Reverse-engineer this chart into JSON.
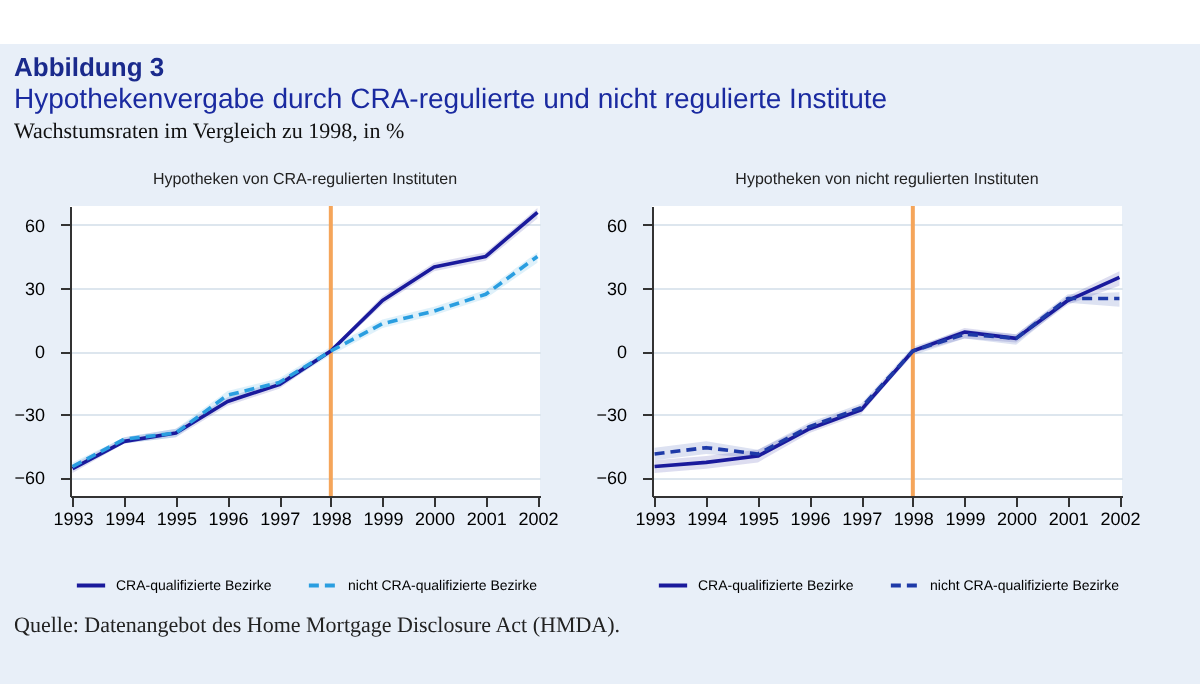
{
  "chart_data": [
    {
      "type": "line",
      "title": "Hypotheken von CRA-regulierten Instituten",
      "annotations": [
        "Abbildung 3",
        "Hypothekenvergabe durch CRA-regulierte und nicht regulierte Institute",
        "Wachstumsraten im Vergleich zu 1998, in %",
        "Quelle: Datenangebot des Home Mortgage Disclosure Act (HMDA)."
      ],
      "categories": [
        "1993",
        "1994",
        "1995",
        "1996",
        "1997",
        "1998",
        "1999",
        "2000",
        "2001",
        "2002"
      ],
      "series": [
        {
          "name": "CRA-qualifizierte Bezirke",
          "color": "#1a1a9c",
          "line_style": "solid",
          "values": [
            -56,
            -43,
            -39,
            -24,
            -16,
            0,
            24,
            40,
            45,
            66
          ],
          "lower": [
            -58,
            -44,
            -41,
            -26,
            -18,
            -1,
            22,
            38,
            43,
            63
          ],
          "upper": [
            -54,
            -41,
            -37,
            -22,
            -14,
            1,
            26,
            42,
            47,
            68
          ]
        },
        {
          "name": "nicht CRA-qualifizierte Bezirke",
          "color": "#2a9ee0",
          "line_style": "dashed",
          "values": [
            -55,
            -42,
            -39,
            -21,
            -15,
            0,
            13,
            19,
            27,
            45
          ],
          "lower": [
            -57,
            -44,
            -41,
            -23,
            -17,
            -2,
            11,
            17,
            25,
            42
          ],
          "upper": [
            -53,
            -41,
            -37,
            -19,
            -13,
            2,
            15,
            21,
            29,
            47
          ]
        }
      ],
      "ylim": [
        -69,
        69
      ],
      "yticks": [
        -60,
        -30,
        0,
        30,
        60
      ],
      "grid": "y",
      "legend": "bottom",
      "ref_lines": [
        {
          "axis": "x",
          "value": "1998",
          "color": "#f5a55a"
        }
      ]
    },
    {
      "type": "line",
      "title": "Hypotheken von nicht regulierten Instituten",
      "categories": [
        "1993",
        "1994",
        "1995",
        "1996",
        "1997",
        "1998",
        "1999",
        "2000",
        "2001",
        "2002"
      ],
      "series": [
        {
          "name": "CRA-qualifizierte Bezirke",
          "color": "#1a1a9c",
          "line_style": "solid",
          "values": [
            -55,
            -53,
            -50,
            -37,
            -28,
            0,
            9,
            6,
            24,
            35
          ],
          "lower": [
            -58,
            -56,
            -53,
            -39,
            -30,
            -1,
            6,
            4,
            22,
            31
          ],
          "upper": [
            -52,
            -50,
            -47,
            -35,
            -26,
            1,
            11,
            8,
            26,
            38
          ]
        },
        {
          "name": "nicht CRA-qualifizierte Bezirke",
          "color": "#1e3aa8",
          "line_style": "dashed",
          "values": [
            -49,
            -46,
            -49,
            -36,
            -27,
            0,
            8,
            6,
            25,
            25
          ],
          "lower": [
            -52,
            -49,
            -51,
            -38,
            -29,
            -2,
            6,
            3,
            23,
            21
          ],
          "upper": [
            -46,
            -43,
            -47,
            -34,
            -25,
            2,
            10,
            8,
            27,
            28
          ]
        }
      ],
      "ylim": [
        -69,
        69
      ],
      "yticks": [
        -60,
        -30,
        0,
        30,
        60
      ],
      "grid": "y",
      "legend": "bottom",
      "ref_lines": [
        {
          "axis": "x",
          "value": "1998",
          "color": "#f5a55a"
        }
      ]
    }
  ]
}
